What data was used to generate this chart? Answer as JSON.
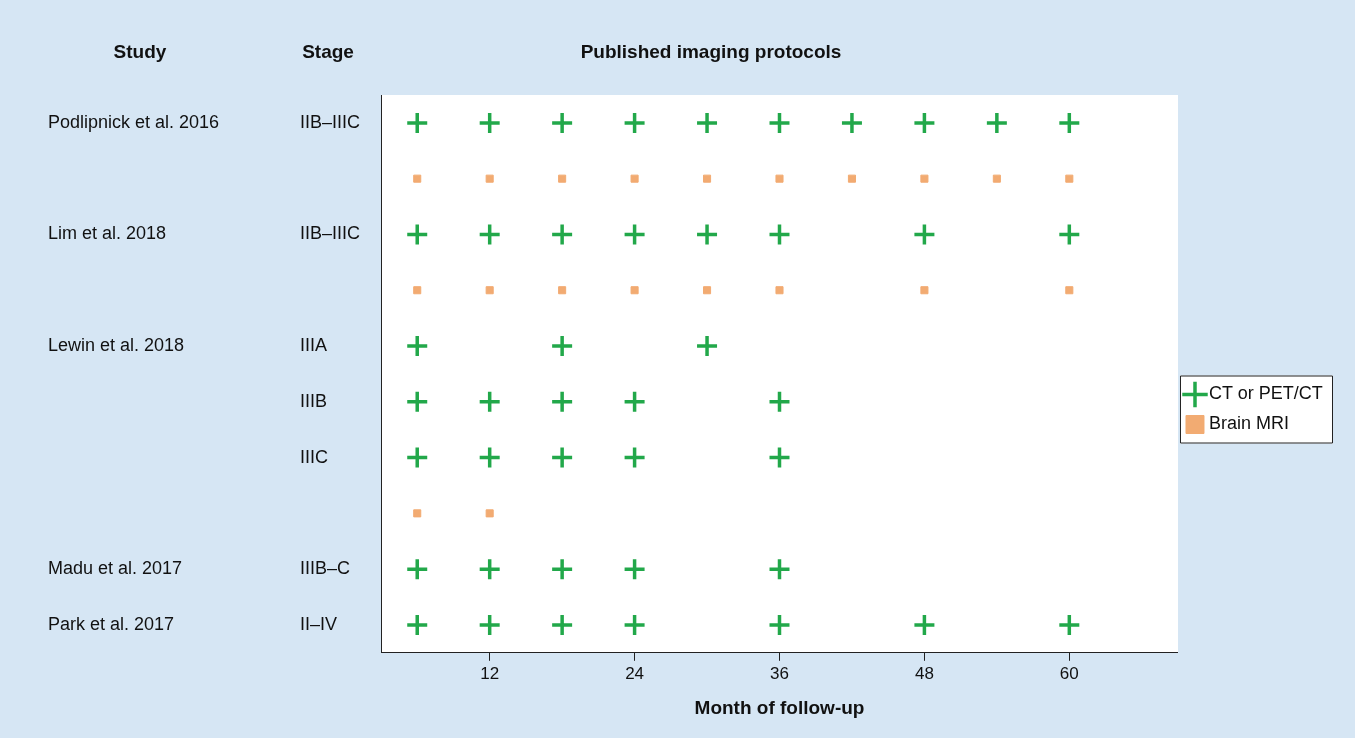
{
  "chart_data": {
    "type": "scatter",
    "orientation": "horizontal",
    "title": "Published imaging protocols",
    "xlabel": "Month of follow-up",
    "categories": [
      "IIB–IIIC",
      null,
      "IIB–IIIC",
      null,
      "IIIA",
      "IIIB",
      "IIIC",
      null,
      "IIIB–C",
      "II–IV"
    ],
    "annotations": [
      "Study",
      "Stage",
      "Podlipnick et al. 2016",
      "Lim et al. 2018",
      "Lewin et al. 2018",
      "Madu et al. 2017",
      "Park et al. 2017"
    ],
    "xlim": [
      3,
      69
    ],
    "xticks": [
      12,
      24,
      36,
      48,
      60
    ],
    "grid": false,
    "legend": "right",
    "series": [
      {
        "name": "CT or PET/CT",
        "color": "#22a84a",
        "marker": "cross",
        "values": [
          6,
          null,
          6,
          null,
          6,
          6,
          6,
          null,
          6,
          6
        ]
      },
      {
        "color": "#22a84a",
        "marker": "cross",
        "values": [
          12,
          null,
          12,
          null,
          null,
          12,
          12,
          null,
          12,
          12
        ]
      },
      {
        "color": "#22a84a",
        "marker": "cross",
        "values": [
          18,
          null,
          18,
          null,
          18,
          18,
          18,
          null,
          18,
          18
        ]
      },
      {
        "color": "#22a84a",
        "marker": "cross",
        "values": [
          24,
          null,
          24,
          null,
          null,
          24,
          24,
          null,
          24,
          24
        ]
      },
      {
        "color": "#22a84a",
        "marker": "cross",
        "values": [
          30,
          null,
          30,
          null,
          30,
          null,
          null,
          null,
          null,
          null
        ]
      },
      {
        "color": "#22a84a",
        "marker": "cross",
        "values": [
          36,
          null,
          36,
          null,
          null,
          36,
          36,
          null,
          36,
          36
        ]
      },
      {
        "color": "#22a84a",
        "marker": "cross",
        "values": [
          42,
          null,
          null,
          null,
          null,
          null,
          null,
          null,
          null,
          null
        ]
      },
      {
        "color": "#22a84a",
        "marker": "cross",
        "values": [
          48,
          null,
          48,
          null,
          null,
          null,
          null,
          null,
          null,
          48
        ]
      },
      {
        "color": "#22a84a",
        "marker": "cross",
        "values": [
          54,
          null,
          null,
          null,
          null,
          null,
          null,
          null,
          null,
          null
        ]
      },
      {
        "color": "#22a84a",
        "marker": "cross",
        "values": [
          60,
          null,
          60,
          null,
          null,
          null,
          null,
          null,
          null,
          60
        ]
      },
      {
        "name": "Brain MRI",
        "color": "#f2ab72",
        "marker": "square",
        "values": [
          null,
          6,
          null,
          6,
          null,
          null,
          null,
          6,
          null,
          null
        ]
      },
      {
        "color": "#f2ab72",
        "marker": "square",
        "values": [
          null,
          12,
          null,
          12,
          null,
          null,
          null,
          12,
          null,
          null
        ]
      },
      {
        "color": "#f2ab72",
        "marker": "square",
        "values": [
          null,
          18,
          null,
          18,
          null,
          null,
          null,
          null,
          null,
          null
        ]
      },
      {
        "color": "#f2ab72",
        "marker": "square",
        "values": [
          null,
          24,
          null,
          24,
          null,
          null,
          null,
          null,
          null,
          null
        ]
      },
      {
        "color": "#f2ab72",
        "marker": "square",
        "values": [
          null,
          30,
          null,
          30,
          null,
          null,
          null,
          null,
          null,
          null
        ]
      },
      {
        "color": "#f2ab72",
        "marker": "square",
        "values": [
          null,
          36,
          null,
          36,
          null,
          null,
          null,
          null,
          null,
          null
        ]
      },
      {
        "color": "#f2ab72",
        "marker": "square",
        "values": [
          null,
          42,
          null,
          null,
          null,
          null,
          null,
          null,
          null,
          null
        ]
      },
      {
        "color": "#f2ab72",
        "marker": "square",
        "values": [
          null,
          48,
          null,
          48,
          null,
          null,
          null,
          null,
          null,
          null
        ]
      },
      {
        "color": "#f2ab72",
        "marker": "square",
        "values": [
          null,
          54,
          null,
          null,
          null,
          null,
          null,
          null,
          null,
          null
        ]
      },
      {
        "color": "#f2ab72",
        "marker": "square",
        "values": [
          null,
          60,
          null,
          60,
          null,
          null,
          null,
          null,
          null,
          null
        ]
      }
    ]
  }
}
